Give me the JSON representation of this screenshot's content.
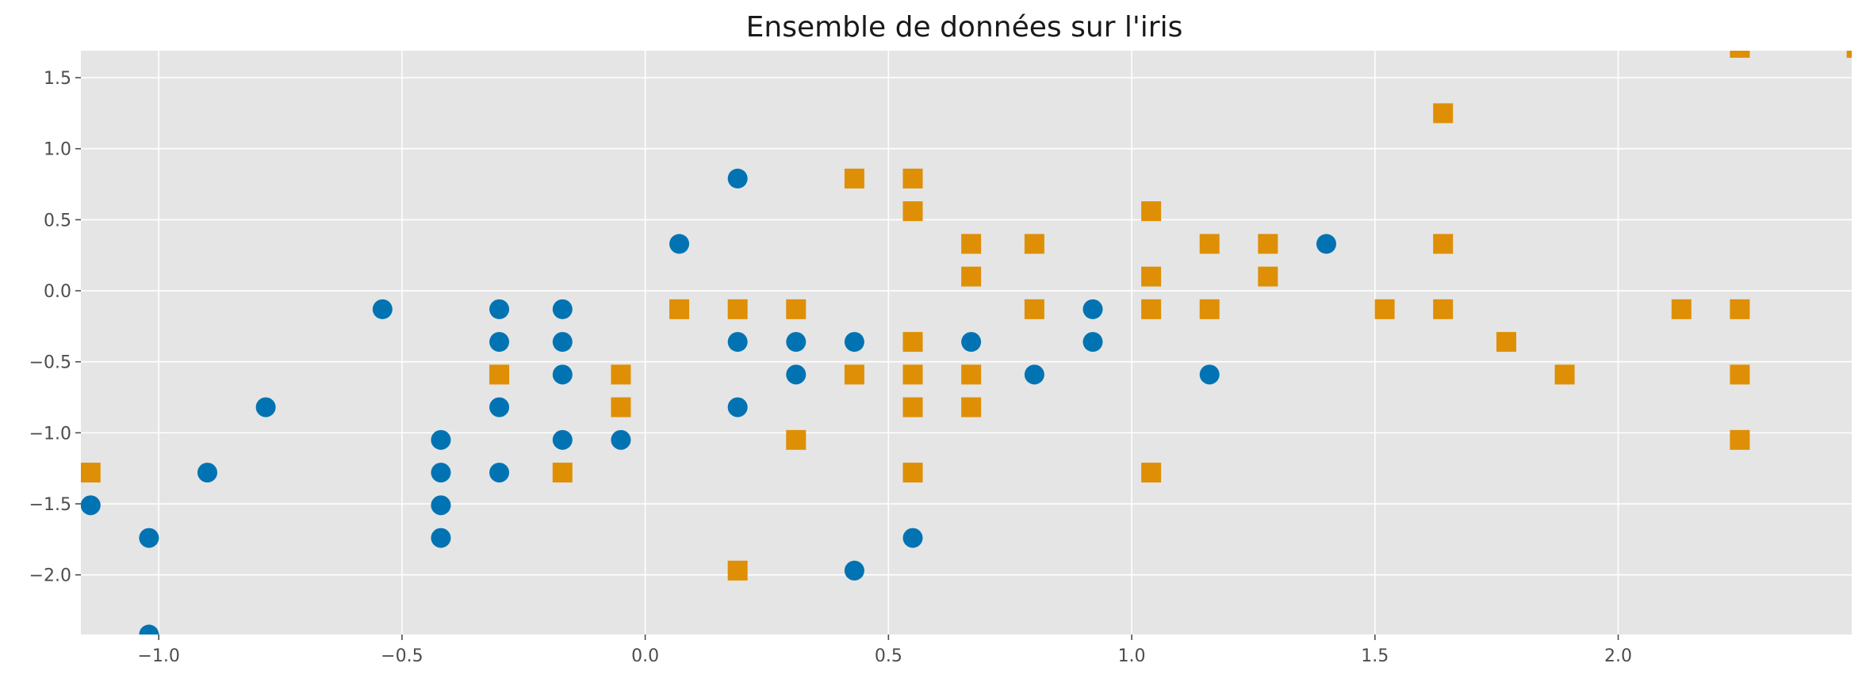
{
  "chart_data": {
    "type": "scatter",
    "title": "Ensemble de données sur l'iris",
    "xlabel": "",
    "ylabel": "",
    "xlim": [
      -1.16,
      2.48
    ],
    "ylim": [
      -2.42,
      1.69
    ],
    "xticks": [
      -1.0,
      -0.5,
      0.0,
      0.5,
      1.0,
      1.5,
      2.0
    ],
    "yticks": [
      -2.0,
      -1.5,
      -1.0,
      -0.5,
      0.0,
      0.5,
      1.0,
      1.5
    ],
    "xtick_labels": [
      "−1.0",
      "−0.5",
      "0.0",
      "0.5",
      "1.0",
      "1.5",
      "2.0"
    ],
    "ytick_labels": [
      "−2.0",
      "−1.5",
      "−1.0",
      "−0.5",
      "0.0",
      "0.5",
      "1.0",
      "1.5"
    ],
    "grid": true,
    "legend": null,
    "background_color": "#e5e5e5",
    "grid_color": "#ffffff",
    "series": [
      {
        "marker": "circle",
        "color": "#0173b2",
        "points": [
          [
            -1.14,
            -1.51
          ],
          [
            -1.02,
            -1.74
          ],
          [
            -1.02,
            -2.42
          ],
          [
            -0.9,
            -1.28
          ],
          [
            -0.78,
            -0.82
          ],
          [
            -0.54,
            -0.13
          ],
          [
            -0.42,
            -1.05
          ],
          [
            -0.42,
            -1.28
          ],
          [
            -0.42,
            -1.51
          ],
          [
            -0.42,
            -1.74
          ],
          [
            -0.3,
            -0.13
          ],
          [
            -0.3,
            -0.36
          ],
          [
            -0.3,
            -0.82
          ],
          [
            -0.3,
            -1.28
          ],
          [
            -0.17,
            -0.13
          ],
          [
            -0.17,
            -0.36
          ],
          [
            -0.17,
            -0.59
          ],
          [
            -0.17,
            -1.05
          ],
          [
            -0.05,
            -1.05
          ],
          [
            0.07,
            0.33
          ],
          [
            0.19,
            0.79
          ],
          [
            0.19,
            -0.36
          ],
          [
            0.19,
            -0.82
          ],
          [
            0.31,
            -0.36
          ],
          [
            0.31,
            -0.59
          ],
          [
            0.43,
            -0.36
          ],
          [
            0.43,
            -1.97
          ],
          [
            0.55,
            -1.74
          ],
          [
            0.67,
            -0.36
          ],
          [
            0.8,
            -0.59
          ],
          [
            0.92,
            -0.13
          ],
          [
            0.92,
            -0.36
          ],
          [
            1.16,
            -0.59
          ],
          [
            1.4,
            0.33
          ]
        ]
      },
      {
        "marker": "square",
        "color": "#de8f05",
        "points": [
          [
            -1.14,
            -1.28
          ],
          [
            -0.3,
            -0.59
          ],
          [
            -0.17,
            -1.28
          ],
          [
            -0.05,
            -0.59
          ],
          [
            -0.05,
            -0.82
          ],
          [
            0.07,
            -0.13
          ],
          [
            0.19,
            -0.13
          ],
          [
            0.19,
            -1.97
          ],
          [
            0.31,
            -0.13
          ],
          [
            0.31,
            -1.05
          ],
          [
            0.43,
            0.79
          ],
          [
            0.43,
            -0.59
          ],
          [
            0.55,
            0.79
          ],
          [
            0.55,
            0.56
          ],
          [
            0.55,
            -0.36
          ],
          [
            0.55,
            -0.59
          ],
          [
            0.55,
            -0.82
          ],
          [
            0.55,
            -1.28
          ],
          [
            0.67,
            0.33
          ],
          [
            0.67,
            0.1
          ],
          [
            0.67,
            -0.59
          ],
          [
            0.67,
            -0.82
          ],
          [
            0.8,
            0.33
          ],
          [
            0.8,
            -0.13
          ],
          [
            1.04,
            0.56
          ],
          [
            1.04,
            0.1
          ],
          [
            1.04,
            -0.13
          ],
          [
            1.04,
            -1.28
          ],
          [
            1.16,
            0.33
          ],
          [
            1.16,
            -0.13
          ],
          [
            1.28,
            0.33
          ],
          [
            1.28,
            0.1
          ],
          [
            1.52,
            -0.13
          ],
          [
            1.64,
            1.25
          ],
          [
            1.64,
            0.33
          ],
          [
            1.64,
            -0.13
          ],
          [
            1.77,
            -0.36
          ],
          [
            1.89,
            -0.59
          ],
          [
            2.13,
            -0.13
          ],
          [
            2.25,
            1.71
          ],
          [
            2.25,
            -0.13
          ],
          [
            2.25,
            -0.59
          ],
          [
            2.25,
            -1.05
          ],
          [
            2.49,
            1.71
          ]
        ]
      }
    ]
  }
}
